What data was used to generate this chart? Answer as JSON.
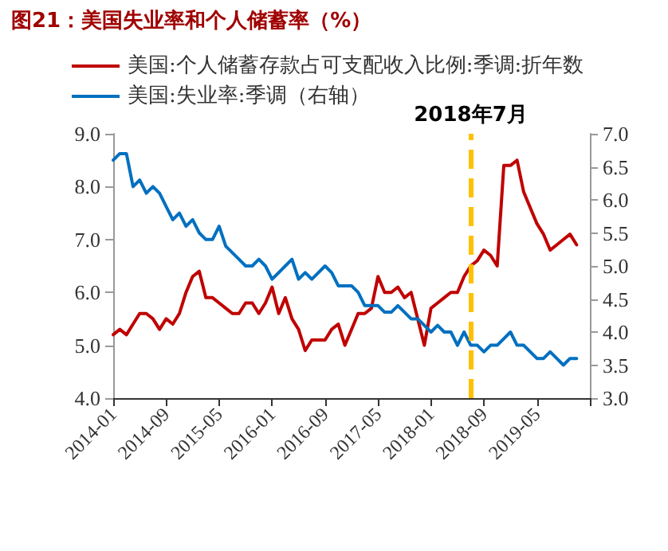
{
  "chart_data": {
    "type": "line",
    "title": "图21：美国失业率和个人储蓄率（%）",
    "x": [
      "2014-01",
      "2014-02",
      "2014-03",
      "2014-04",
      "2014-05",
      "2014-06",
      "2014-07",
      "2014-08",
      "2014-09",
      "2014-10",
      "2014-11",
      "2014-12",
      "2015-01",
      "2015-02",
      "2015-03",
      "2015-04",
      "2015-05",
      "2015-06",
      "2015-07",
      "2015-08",
      "2015-09",
      "2015-10",
      "2015-11",
      "2015-12",
      "2016-01",
      "2016-02",
      "2016-03",
      "2016-04",
      "2016-05",
      "2016-06",
      "2016-07",
      "2016-08",
      "2016-09",
      "2016-10",
      "2016-11",
      "2016-12",
      "2017-01",
      "2017-02",
      "2017-03",
      "2017-04",
      "2017-05",
      "2017-06",
      "2017-07",
      "2017-08",
      "2017-09",
      "2017-10",
      "2017-11",
      "2017-12",
      "2018-01",
      "2018-02",
      "2018-03",
      "2018-04",
      "2018-05",
      "2018-06",
      "2018-07",
      "2018-08",
      "2018-09",
      "2018-10",
      "2018-11",
      "2018-12",
      "2019-01",
      "2019-02",
      "2019-03",
      "2019-04",
      "2019-05",
      "2019-06",
      "2019-07",
      "2019-08",
      "2019-09",
      "2019-10",
      "2019-11"
    ],
    "series": [
      {
        "name": "美国:个人储蓄存款占可支配收入比例:季调:折年数",
        "color": "#c00000",
        "values": [
          5.2,
          5.3,
          5.2,
          5.4,
          5.6,
          5.6,
          5.5,
          5.3,
          5.5,
          5.4,
          5.6,
          6.0,
          6.3,
          6.4,
          5.9,
          5.9,
          5.8,
          5.7,
          5.6,
          5.6,
          5.8,
          5.8,
          5.6,
          5.8,
          6.1,
          5.6,
          5.9,
          5.5,
          5.3,
          4.9,
          5.1,
          5.1,
          5.1,
          5.3,
          5.4,
          5.0,
          5.3,
          5.6,
          5.6,
          5.7,
          6.3,
          6.0,
          6.0,
          6.1,
          5.9,
          6.0,
          5.5,
          5.0,
          5.7,
          5.8,
          5.9,
          6.0,
          6.0,
          6.3,
          6.5,
          6.6,
          6.8,
          6.7,
          6.5,
          8.4,
          8.4,
          8.5,
          7.9,
          7.6,
          7.3,
          7.1,
          6.8,
          6.9,
          7.0,
          7.1,
          6.9
        ]
      },
      {
        "name": "美国:失业率:季调（右轴）",
        "color": "#0070c0",
        "axis": "y2",
        "values": [
          6.6,
          6.7,
          6.7,
          6.2,
          6.3,
          6.1,
          6.2,
          6.1,
          5.9,
          5.7,
          5.8,
          5.6,
          5.7,
          5.5,
          5.4,
          5.4,
          5.6,
          5.3,
          5.2,
          5.1,
          5.0,
          5.0,
          5.1,
          5.0,
          4.8,
          4.9,
          5.0,
          5.1,
          4.8,
          4.9,
          4.8,
          4.9,
          5.0,
          4.9,
          4.7,
          4.7,
          4.7,
          4.6,
          4.4,
          4.4,
          4.4,
          4.3,
          4.3,
          4.4,
          4.3,
          4.2,
          4.2,
          4.1,
          4.0,
          4.1,
          4.0,
          4.0,
          3.8,
          4.0,
          3.8,
          3.8,
          3.7,
          3.8,
          3.8,
          3.9,
          4.0,
          3.8,
          3.8,
          3.7,
          3.6,
          3.6,
          3.7,
          3.6,
          3.5,
          3.6,
          3.6
        ]
      }
    ],
    "xlim": [
      "2014-01",
      "2020-01"
    ],
    "xticks": [
      "2014-01",
      "2014-09",
      "2015-05",
      "2016-01",
      "2016-09",
      "2017-05",
      "2018-01",
      "2018-09",
      "2019-05",
      {
        "value": "2020-01",
        "label": null
      }
    ],
    "ylim": [
      4,
      9
    ],
    "yticks": [
      {
        "value": 4,
        "label": "4.0"
      },
      {
        "value": 5,
        "label": "5.0"
      },
      {
        "value": 6,
        "label": "6.0"
      },
      {
        "value": 7,
        "label": "7.0"
      },
      {
        "value": 8,
        "label": "8.0"
      },
      {
        "value": 9,
        "label": "9.0"
      }
    ],
    "y2lim": [
      3,
      7
    ],
    "y2ticks": [
      {
        "value": 3,
        "label": "3.0"
      },
      {
        "value": 3.5,
        "label": "3.5"
      },
      {
        "value": 4,
        "label": "4.0"
      },
      {
        "value": 4.5,
        "label": "4.5"
      },
      {
        "value": 5,
        "label": "5.0"
      },
      {
        "value": 5.5,
        "label": "5.5"
      },
      {
        "value": 6,
        "label": "6.0"
      },
      {
        "value": 6.5,
        "label": "6.5"
      },
      {
        "value": 7,
        "label": "7.0"
      }
    ],
    "ref_lines": [
      {
        "axis": "x",
        "value": "2018-07",
        "label": "2018年7月",
        "color": "#ffc000",
        "line_style": "dashed"
      }
    ],
    "grid": false,
    "legend": "top",
    "marker": "none",
    "line_style": "solid"
  }
}
